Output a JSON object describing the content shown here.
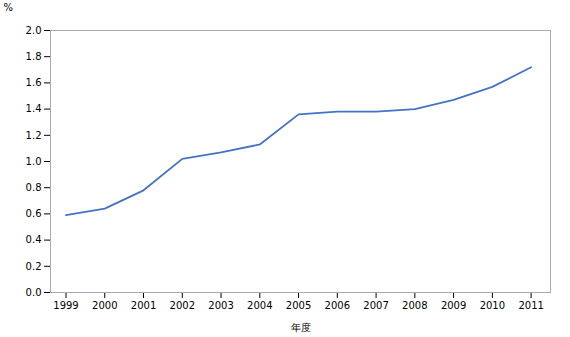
{
  "chart_data": {
    "type": "line",
    "x": [
      1999,
      2000,
      2001,
      2002,
      2003,
      2004,
      2005,
      2006,
      2007,
      2008,
      2009,
      2010,
      2011
    ],
    "values": [
      0.59,
      0.64,
      0.78,
      1.02,
      1.07,
      1.13,
      1.36,
      1.38,
      1.38,
      1.4,
      1.47,
      1.57,
      1.72
    ],
    "color": "#4472c4",
    "xlabel": "年度",
    "ylabel": "%",
    "xlim": [
      1998.6,
      2011.5
    ],
    "xticks": [
      1999,
      2000,
      2001,
      2002,
      2003,
      2004,
      2005,
      2006,
      2007,
      2008,
      2009,
      2010,
      2011
    ],
    "ylim": [
      0.0,
      2.0
    ],
    "yticks": [
      {
        "value": 0,
        "label": "0.0"
      },
      0.2,
      0.4,
      0.6,
      0.8,
      {
        "value": 1,
        "label": "1.0"
      },
      1.2,
      1.4,
      1.6,
      1.8,
      {
        "value": 2,
        "label": "2.0"
      }
    ],
    "grid": false
  }
}
